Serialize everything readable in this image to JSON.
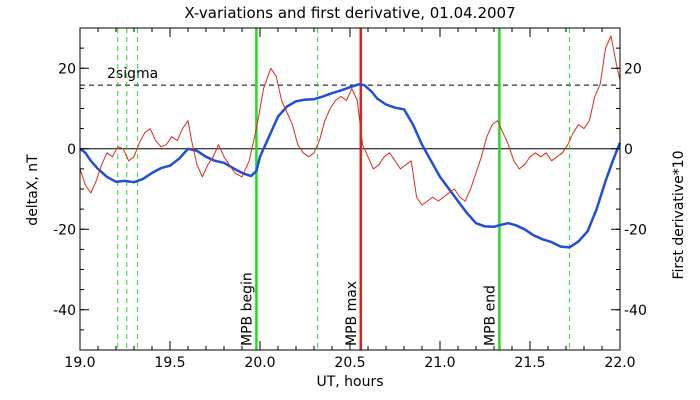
{
  "chart_data": {
    "type": "line",
    "title": "X-variations and first derivative, 01.04.2007",
    "xlabel": "UT, hours",
    "ylabel_left": "deltaX, nT",
    "ylabel_right": "First derivative*10",
    "xlim": [
      19.0,
      22.0
    ],
    "ylim": [
      -50,
      30
    ],
    "x_ticks": [
      "19.0",
      "19.5",
      "20.0",
      "20.5",
      "21.0",
      "21.5",
      "22.0"
    ],
    "x_tick_values": [
      19.0,
      19.5,
      20.0,
      20.5,
      21.0,
      21.5,
      22.0
    ],
    "y_ticks": [
      "20",
      "0",
      "-20",
      "-40"
    ],
    "y_tick_values": [
      20,
      0,
      -20,
      -40
    ],
    "colors": {
      "deltaX": "#1f4fd8",
      "derivative": "#e02a1a",
      "mpb_lines": "#22dd22",
      "mpb_max": "#cc2a1a",
      "left_axis_label": "#1f4fd8",
      "right_axis_label": "#e02a1a"
    },
    "series": [
      {
        "name": "deltaX",
        "x": [
          19.0,
          19.03,
          19.06,
          19.1,
          19.15,
          19.2,
          19.25,
          19.3,
          19.35,
          19.4,
          19.45,
          19.5,
          19.55,
          19.6,
          19.65,
          19.7,
          19.75,
          19.8,
          19.85,
          19.9,
          19.95,
          19.98,
          20.0,
          20.05,
          20.1,
          20.15,
          20.2,
          20.25,
          20.3,
          20.35,
          20.4,
          20.45,
          20.5,
          20.55,
          20.58,
          20.62,
          20.65,
          20.7,
          20.75,
          20.8,
          20.85,
          20.9,
          20.95,
          21.0,
          21.05,
          21.1,
          21.15,
          21.2,
          21.25,
          21.3,
          21.33,
          21.38,
          21.42,
          21.47,
          21.52,
          21.57,
          21.62,
          21.67,
          21.72,
          21.77,
          21.82,
          21.87,
          21.92,
          21.96,
          22.0
        ],
        "values": [
          0,
          -1,
          -3,
          -5,
          -7,
          -8.2,
          -8,
          -8.3,
          -7.5,
          -6,
          -4.8,
          -4.2,
          -2.5,
          0,
          -0.5,
          -2,
          -3,
          -3.5,
          -4.8,
          -6,
          -6.8,
          -5.5,
          -2,
          3,
          8,
          10.5,
          11.8,
          12.2,
          12.3,
          13,
          13.8,
          14.5,
          15.3,
          16,
          15.8,
          14.2,
          12.5,
          11,
          10.2,
          9.8,
          6,
          1,
          -3,
          -7,
          -10,
          -13,
          -16,
          -18.5,
          -19.3,
          -19.4,
          -19,
          -18.5,
          -19,
          -20,
          -21.5,
          -22.5,
          -23.2,
          -24.3,
          -24.5,
          -23,
          -20.5,
          -15,
          -8,
          -3,
          1.5
        ]
      },
      {
        "name": "First derivative*10",
        "x": [
          19.0,
          19.03,
          19.06,
          19.09,
          19.12,
          19.15,
          19.18,
          19.21,
          19.24,
          19.27,
          19.3,
          19.33,
          19.36,
          19.39,
          19.42,
          19.45,
          19.48,
          19.51,
          19.54,
          19.57,
          19.6,
          19.62,
          19.65,
          19.68,
          19.71,
          19.74,
          19.77,
          19.8,
          19.83,
          19.86,
          19.9,
          19.94,
          19.98,
          20.02,
          20.06,
          20.09,
          20.12,
          20.15,
          20.18,
          20.21,
          20.24,
          20.27,
          20.3,
          20.33,
          20.36,
          20.39,
          20.42,
          20.45,
          20.48,
          20.51,
          20.54,
          20.57,
          20.6,
          20.63,
          20.66,
          20.69,
          20.72,
          20.75,
          20.78,
          20.81,
          20.84,
          20.87,
          20.9,
          20.93,
          20.96,
          20.99,
          21.02,
          21.05,
          21.08,
          21.11,
          21.14,
          21.17,
          21.2,
          21.23,
          21.26,
          21.29,
          21.32,
          21.35,
          21.38,
          21.41,
          21.44,
          21.47,
          21.5,
          21.53,
          21.56,
          21.59,
          21.62,
          21.65,
          21.68,
          21.71,
          21.74,
          21.77,
          21.8,
          21.83,
          21.86,
          21.89,
          21.92,
          21.95,
          21.98,
          22.0
        ],
        "values": [
          -5,
          -9,
          -11,
          -8,
          -4,
          -1,
          -2,
          0.5,
          0,
          -3,
          -2,
          1.5,
          4,
          5,
          2,
          0.5,
          1,
          3,
          2,
          5,
          7,
          2,
          -4,
          -7,
          -4,
          -2,
          1,
          -2,
          -4,
          -6,
          -7,
          -3,
          5,
          15,
          20,
          18,
          12,
          9,
          6,
          1,
          -1,
          -2,
          -1,
          2,
          7,
          10,
          12,
          13,
          12,
          15,
          12,
          1,
          -2,
          -5,
          -4,
          -2,
          -1,
          -3,
          -5,
          -4,
          -3,
          -12,
          -14,
          -13,
          -12,
          -13,
          -12,
          -11,
          -10,
          -12,
          -13,
          -10,
          -6,
          -2,
          3,
          6,
          7,
          4,
          1,
          -3,
          -5,
          -4,
          -2,
          -1,
          -2,
          -1,
          -3,
          -2,
          -1,
          1,
          4,
          6,
          5,
          7,
          13,
          16,
          25,
          28,
          21,
          17
        ]
      }
    ],
    "reference_lines": {
      "sigma_label": "2sigma",
      "sigma_value": 15.8,
      "zero_value": 0,
      "dashed_green_x": [
        19.21,
        19.26,
        19.32,
        20.32,
        21.72
      ],
      "mpb_begin": {
        "label": "MPB begin",
        "x": 19.98
      },
      "mpb_max": {
        "label": "MPB max",
        "x": 20.56
      },
      "mpb_end": {
        "label": "MPB end",
        "x": 21.33
      }
    }
  }
}
